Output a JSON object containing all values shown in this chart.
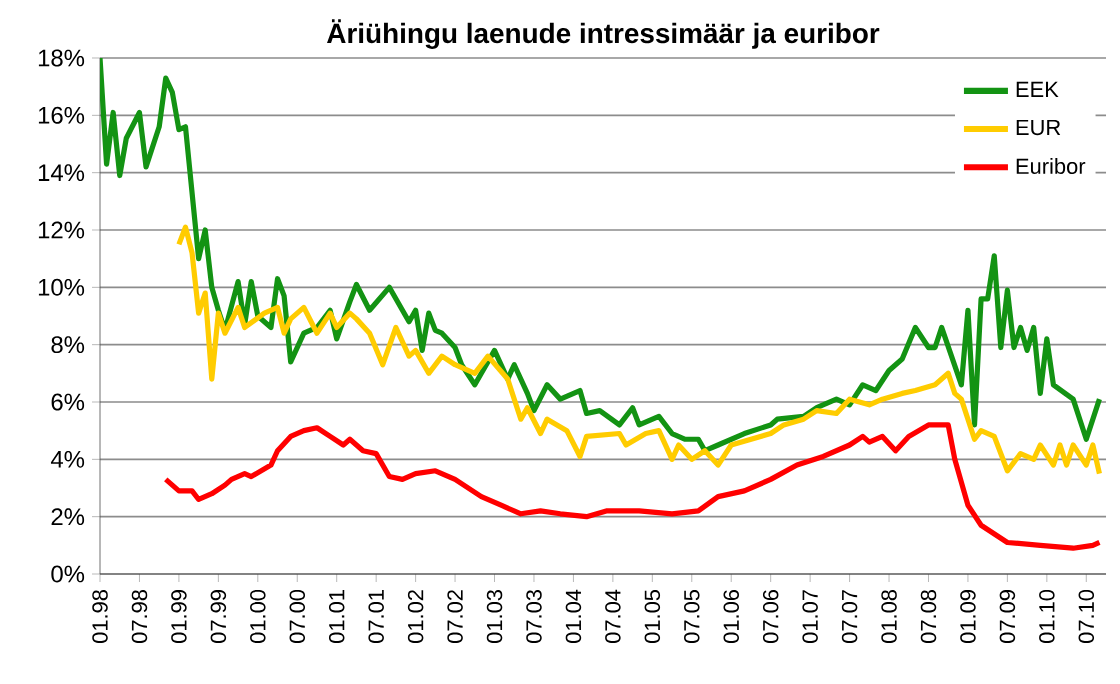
{
  "chart_data": {
    "type": "line",
    "title": "Äriühingu laenude intressimäär ja euribor",
    "xlim": [
      "1998-01",
      "2010-10"
    ],
    "xticks": [
      {
        "value": "1998-01",
        "label": "01.98"
      },
      {
        "value": "1998-07",
        "label": "07.98"
      },
      {
        "value": "1999-01",
        "label": "01.99"
      },
      {
        "value": "1999-07",
        "label": "07.99"
      },
      {
        "value": "2000-01",
        "label": "01.00"
      },
      {
        "value": "2000-07",
        "label": "07.00"
      },
      {
        "value": "2001-01",
        "label": "01.01"
      },
      {
        "value": "2001-07",
        "label": "07.01"
      },
      {
        "value": "2002-01",
        "label": "01.02"
      },
      {
        "value": "2002-07",
        "label": "07.02"
      },
      {
        "value": "2003-01",
        "label": "01.03"
      },
      {
        "value": "2003-07",
        "label": "07.03"
      },
      {
        "value": "2004-01",
        "label": "01.04"
      },
      {
        "value": "2004-07",
        "label": "07.04"
      },
      {
        "value": "2005-01",
        "label": "01.05"
      },
      {
        "value": "2005-07",
        "label": "07.05"
      },
      {
        "value": "2006-01",
        "label": "01.06"
      },
      {
        "value": "2006-07",
        "label": "07.06"
      },
      {
        "value": "2007-01",
        "label": "01.07"
      },
      {
        "value": "2007-07",
        "label": "07.07"
      },
      {
        "value": "2008-01",
        "label": "01.08"
      },
      {
        "value": "2008-07",
        "label": "07.08"
      },
      {
        "value": "2009-01",
        "label": "01.09"
      },
      {
        "value": "2009-07",
        "label": "07.09"
      },
      {
        "value": "2010-01",
        "label": "01.10"
      },
      {
        "value": "2010-07",
        "label": "07.10"
      }
    ],
    "ylim": [
      0,
      18
    ],
    "yticks": [
      {
        "value": 0,
        "label": "0%"
      },
      {
        "value": 2,
        "label": "2%"
      },
      {
        "value": 4,
        "label": "4%"
      },
      {
        "value": 6,
        "label": "6%"
      },
      {
        "value": 8,
        "label": "8%"
      },
      {
        "value": 10,
        "label": "10%"
      },
      {
        "value": 12,
        "label": "12%"
      },
      {
        "value": 14,
        "label": "14%"
      },
      {
        "value": 16,
        "label": "16%"
      },
      {
        "value": 18,
        "label": "18%"
      }
    ],
    "grid": "y",
    "legend": "top right",
    "series": [
      {
        "name": "EEK",
        "color": "#139313",
        "x": [
          "1998-01",
          "1998-02",
          "1998-03",
          "1998-04",
          "1998-05",
          "1998-07",
          "1998-08",
          "1998-10",
          "1998-11",
          "1998-12",
          "1999-01",
          "1999-02",
          "1999-04",
          "1999-05",
          "1999-06",
          "1999-07",
          "1999-08",
          "1999-10",
          "1999-11",
          "1999-12",
          "2000-01",
          "2000-03",
          "2000-04",
          "2000-05",
          "2000-06",
          "2000-08",
          "2000-10",
          "2000-12",
          "2001-01",
          "2001-03",
          "2001-04",
          "2001-06",
          "2001-09",
          "2001-12",
          "2002-01",
          "2002-02",
          "2002-03",
          "2002-04",
          "2002-05",
          "2002-07",
          "2002-08",
          "2002-10",
          "2002-11",
          "2003-01",
          "2003-03",
          "2003-04",
          "2003-06",
          "2003-07",
          "2003-09",
          "2003-11",
          "2004-02",
          "2004-03",
          "2004-05",
          "2004-08",
          "2004-10",
          "2004-11",
          "2005-02",
          "2005-04",
          "2005-06",
          "2005-08",
          "2005-09",
          "2005-11",
          "2006-01",
          "2006-03",
          "2006-07",
          "2006-08",
          "2006-12",
          "2007-02",
          "2007-05",
          "2007-07",
          "2007-09",
          "2007-11",
          "2008-01",
          "2008-03",
          "2008-05",
          "2008-07",
          "2008-08",
          "2008-09",
          "2008-12",
          "2009-01",
          "2009-02",
          "2009-03",
          "2009-04",
          "2009-05",
          "2009-06",
          "2009-07",
          "2009-08",
          "2009-09",
          "2009-10",
          "2009-11",
          "2009-12",
          "2010-01",
          "2010-02",
          "2010-05",
          "2010-07",
          "2010-09"
        ],
        "values": [
          18,
          14.3,
          16.1,
          13.9,
          15.2,
          16.1,
          14.2,
          15.6,
          17.3,
          16.8,
          15.5,
          15.6,
          11,
          12,
          10,
          9.2,
          8.5,
          10.2,
          8.7,
          10.2,
          9,
          8.6,
          10.3,
          9.7,
          7.4,
          8.4,
          8.6,
          9.2,
          8.2,
          9.5,
          10.1,
          9.2,
          10,
          8.8,
          9.2,
          7.8,
          9.1,
          8.5,
          8.4,
          7.9,
          7.3,
          6.6,
          7.0,
          7.8,
          6.8,
          7.3,
          6.3,
          5.7,
          6.6,
          6.1,
          6.4,
          5.6,
          5.7,
          5.2,
          5.8,
          5.2,
          5.5,
          4.9,
          4.7,
          4.7,
          4.3,
          4.5,
          4.7,
          4.9,
          5.2,
          5.4,
          5.5,
          5.8,
          6.1,
          5.9,
          6.6,
          6.4,
          7.1,
          7.5,
          8.6,
          7.9,
          7.9,
          8.6,
          6.6,
          9.2,
          5.2,
          9.6,
          9.6,
          11.1,
          7.9,
          9.9,
          7.9,
          8.6,
          7.8,
          8.6,
          6.3,
          8.2,
          6.6,
          6.1,
          4.7,
          6.1
        ]
      },
      {
        "name": "EUR",
        "color": "#ffcc00",
        "x": [
          "1999-01",
          "1999-02",
          "1999-03",
          "1999-04",
          "1999-05",
          "1999-06",
          "1999-07",
          "1999-08",
          "1999-10",
          "1999-11",
          "2000-02",
          "2000-04",
          "2000-05",
          "2000-06",
          "2000-08",
          "2000-10",
          "2000-12",
          "2001-01",
          "2001-03",
          "2001-04",
          "2001-06",
          "2001-08",
          "2001-10",
          "2001-12",
          "2002-01",
          "2002-03",
          "2002-05",
          "2002-07",
          "2002-10",
          "2002-12",
          "2003-03",
          "2003-05",
          "2003-06",
          "2003-08",
          "2003-09",
          "2003-12",
          "2004-02",
          "2004-03",
          "2004-08",
          "2004-09",
          "2004-12",
          "2005-02",
          "2005-04",
          "2005-05",
          "2005-07",
          "2005-09",
          "2005-11",
          "2006-01",
          "2006-04",
          "2006-07",
          "2006-09",
          "2006-12",
          "2007-02",
          "2007-05",
          "2007-07",
          "2007-10",
          "2007-12",
          "2008-03",
          "2008-05",
          "2008-08",
          "2008-10",
          "2008-11",
          "2008-12",
          "2009-02",
          "2009-03",
          "2009-05",
          "2009-07",
          "2009-09",
          "2009-11",
          "2009-12",
          "2010-02",
          "2010-03",
          "2010-04",
          "2010-05",
          "2010-07",
          "2010-08",
          "2010-09"
        ],
        "values": [
          11.5,
          12.1,
          11.2,
          9.1,
          9.8,
          6.8,
          9.1,
          8.4,
          9.3,
          8.6,
          9.1,
          9.3,
          8.4,
          8.9,
          9.3,
          8.4,
          9.1,
          8.6,
          9.1,
          8.9,
          8.4,
          7.3,
          8.6,
          7.6,
          7.8,
          7.0,
          7.6,
          7.3,
          7.0,
          7.6,
          6.8,
          5.4,
          5.8,
          4.9,
          5.4,
          5.0,
          4.1,
          4.8,
          4.9,
          4.5,
          4.9,
          5.0,
          4.0,
          4.5,
          4.0,
          4.3,
          3.8,
          4.5,
          4.7,
          4.9,
          5.2,
          5.4,
          5.7,
          5.6,
          6.1,
          5.9,
          6.1,
          6.3,
          6.4,
          6.6,
          7.0,
          6.3,
          6.1,
          4.7,
          5.0,
          4.8,
          3.6,
          4.2,
          4.0,
          4.5,
          3.8,
          4.5,
          3.8,
          4.5,
          3.8,
          4.5,
          3.5
        ]
      },
      {
        "name": "Euribor",
        "color": "#ff0000",
        "x": [
          "1998-11",
          "1999-01",
          "1999-03",
          "1999-04",
          "1999-06",
          "1999-08",
          "1999-09",
          "1999-11",
          "1999-12",
          "2000-03",
          "2000-04",
          "2000-06",
          "2000-08",
          "2000-10",
          "2000-12",
          "2001-02",
          "2001-03",
          "2001-05",
          "2001-07",
          "2001-09",
          "2001-11",
          "2002-01",
          "2002-04",
          "2002-07",
          "2002-11",
          "2003-02",
          "2003-05",
          "2003-08",
          "2003-11",
          "2004-03",
          "2004-06",
          "2004-11",
          "2005-04",
          "2005-08",
          "2005-11",
          "2006-01",
          "2006-03",
          "2006-07",
          "2006-11",
          "2007-03",
          "2007-07",
          "2007-09",
          "2007-10",
          "2007-12",
          "2008-02",
          "2008-04",
          "2008-07",
          "2008-10",
          "2008-11",
          "2009-01",
          "2009-03",
          "2009-05",
          "2009-07",
          "2009-12",
          "2010-05",
          "2010-08",
          "2010-09"
        ],
        "values": [
          3.3,
          2.9,
          2.9,
          2.6,
          2.8,
          3.1,
          3.3,
          3.5,
          3.4,
          3.8,
          4.3,
          4.8,
          5.0,
          5.1,
          4.8,
          4.5,
          4.7,
          4.3,
          4.2,
          3.4,
          3.3,
          3.5,
          3.6,
          3.3,
          2.7,
          2.4,
          2.1,
          2.2,
          2.1,
          2.0,
          2.2,
          2.2,
          2.1,
          2.2,
          2.7,
          2.8,
          2.9,
          3.3,
          3.8,
          4.1,
          4.5,
          4.8,
          4.6,
          4.8,
          4.3,
          4.8,
          5.2,
          5.2,
          4.0,
          2.4,
          1.7,
          1.4,
          1.1,
          1.0,
          0.9,
          1.0,
          1.1
        ]
      }
    ]
  }
}
